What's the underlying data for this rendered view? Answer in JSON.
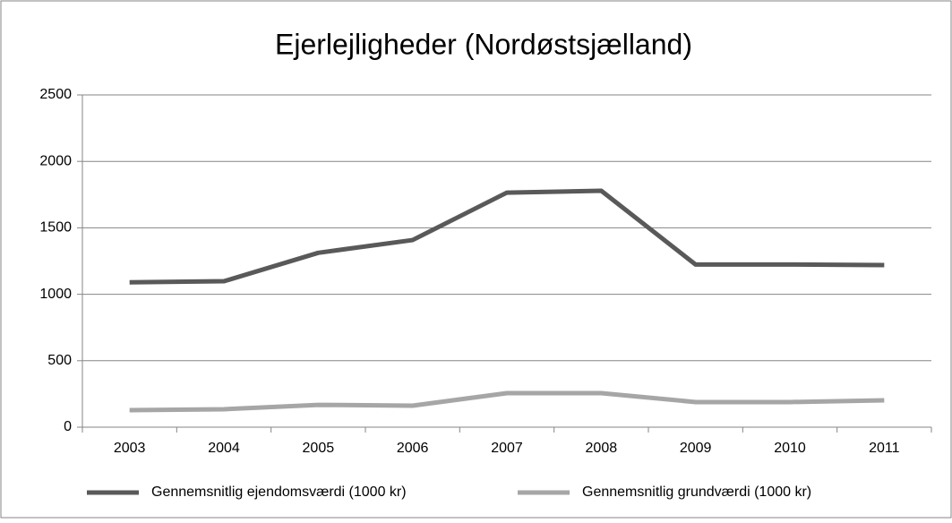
{
  "chart_data": {
    "type": "line",
    "title": "Ejerlejligheder (Nordøstsjælland)",
    "categories": [
      "2003",
      "2004",
      "2005",
      "2006",
      "2007",
      "2008",
      "2009",
      "2010",
      "2011"
    ],
    "series": [
      {
        "name": "Gennemsnitlig ejendomsværdi (1000 kr)",
        "color": "#595959",
        "values": [
          1090,
          1098,
          1312,
          1408,
          1765,
          1779,
          1224,
          1224,
          1220
        ]
      },
      {
        "name": "Gennemsnitlig grundværdi (1000 kr)",
        "color": "#a6a6a6",
        "values": [
          128,
          135,
          168,
          162,
          256,
          256,
          189,
          189,
          202
        ]
      }
    ],
    "ylim": [
      0,
      2500
    ],
    "yticks": [
      0,
      500,
      1000,
      1500,
      2000,
      2500
    ],
    "grid": true,
    "legend": "bottom"
  }
}
